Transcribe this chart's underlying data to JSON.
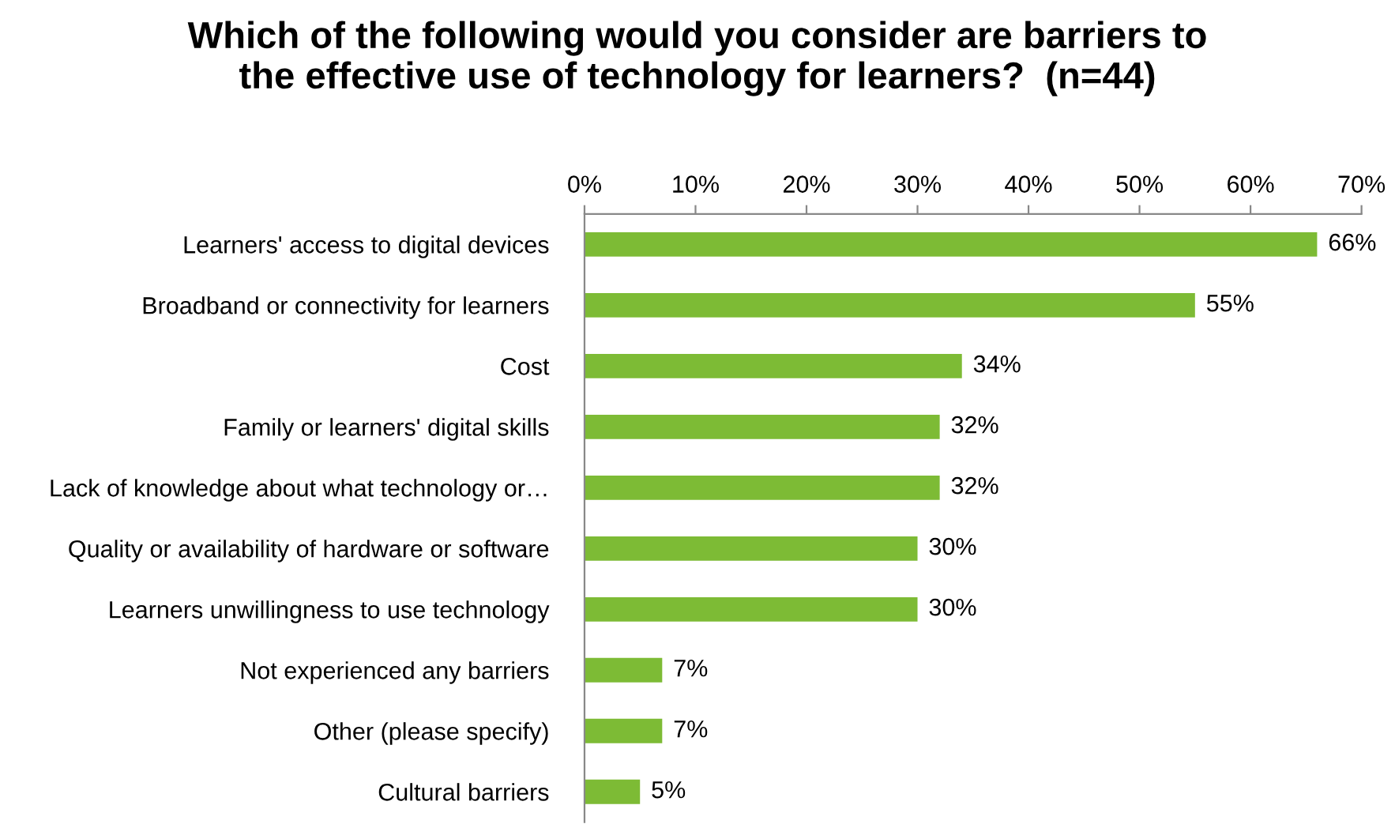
{
  "chart_data": {
    "type": "bar",
    "orientation": "horizontal",
    "title": "Which of the following would you consider are barriers to\nthe effective use of technology for learners?  (n=44)",
    "categories": [
      "Learners' access to digital devices",
      "Broadband or connectivity for learners",
      "Cost",
      "Family or learners' digital skills",
      "Lack of knowledge about what technology or…",
      "Quality or availability of hardware or software",
      "Learners unwillingness to use technology",
      "Not experienced any barriers",
      "Other (please specify)",
      "Cultural barriers"
    ],
    "values": [
      66,
      55,
      34,
      32,
      32,
      30,
      30,
      7,
      7,
      5
    ],
    "value_labels": [
      "66%",
      "55%",
      "34%",
      "32%",
      "32%",
      "30%",
      "30%",
      "7%",
      "7%",
      "5%"
    ],
    "color": "#7dbb35",
    "xlim": [
      0,
      70
    ],
    "xticks": [
      {
        "value": 0,
        "label": "0%"
      },
      {
        "value": 10,
        "label": "10%"
      },
      {
        "value": 20,
        "label": "20%"
      },
      {
        "value": 30,
        "label": "30%"
      },
      {
        "value": 40,
        "label": "40%"
      },
      {
        "value": 50,
        "label": "50%"
      },
      {
        "value": 60,
        "label": "60%"
      },
      {
        "value": 70,
        "label": "70%"
      }
    ],
    "grid": false,
    "legend": false
  }
}
